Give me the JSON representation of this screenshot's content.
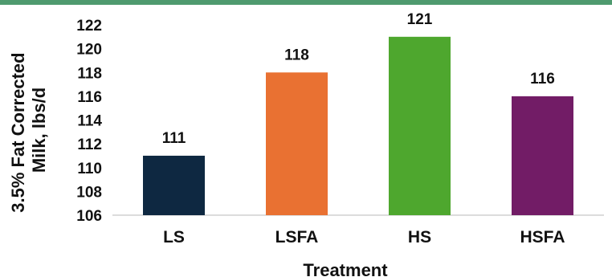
{
  "chart_data": {
    "type": "bar",
    "categories": [
      "LS",
      "LSFA",
      "HS",
      "HSFA"
    ],
    "values": [
      111,
      118,
      121,
      116
    ],
    "data_labels": [
      "111",
      "118",
      "121",
      "116"
    ],
    "colors": [
      "#0e2841",
      "#e97132",
      "#4ea72e",
      "#721c66"
    ],
    "ylim": [
      106,
      122
    ],
    "yticks": [
      106,
      108,
      110,
      112,
      114,
      116,
      118,
      120,
      122
    ],
    "xlabel": "Treatment",
    "ylabel_lines": [
      "3.5% Fat Corrected",
      "Milk, lbs/d"
    ],
    "grid": false
  },
  "header_band_color": "#4f9a6f"
}
